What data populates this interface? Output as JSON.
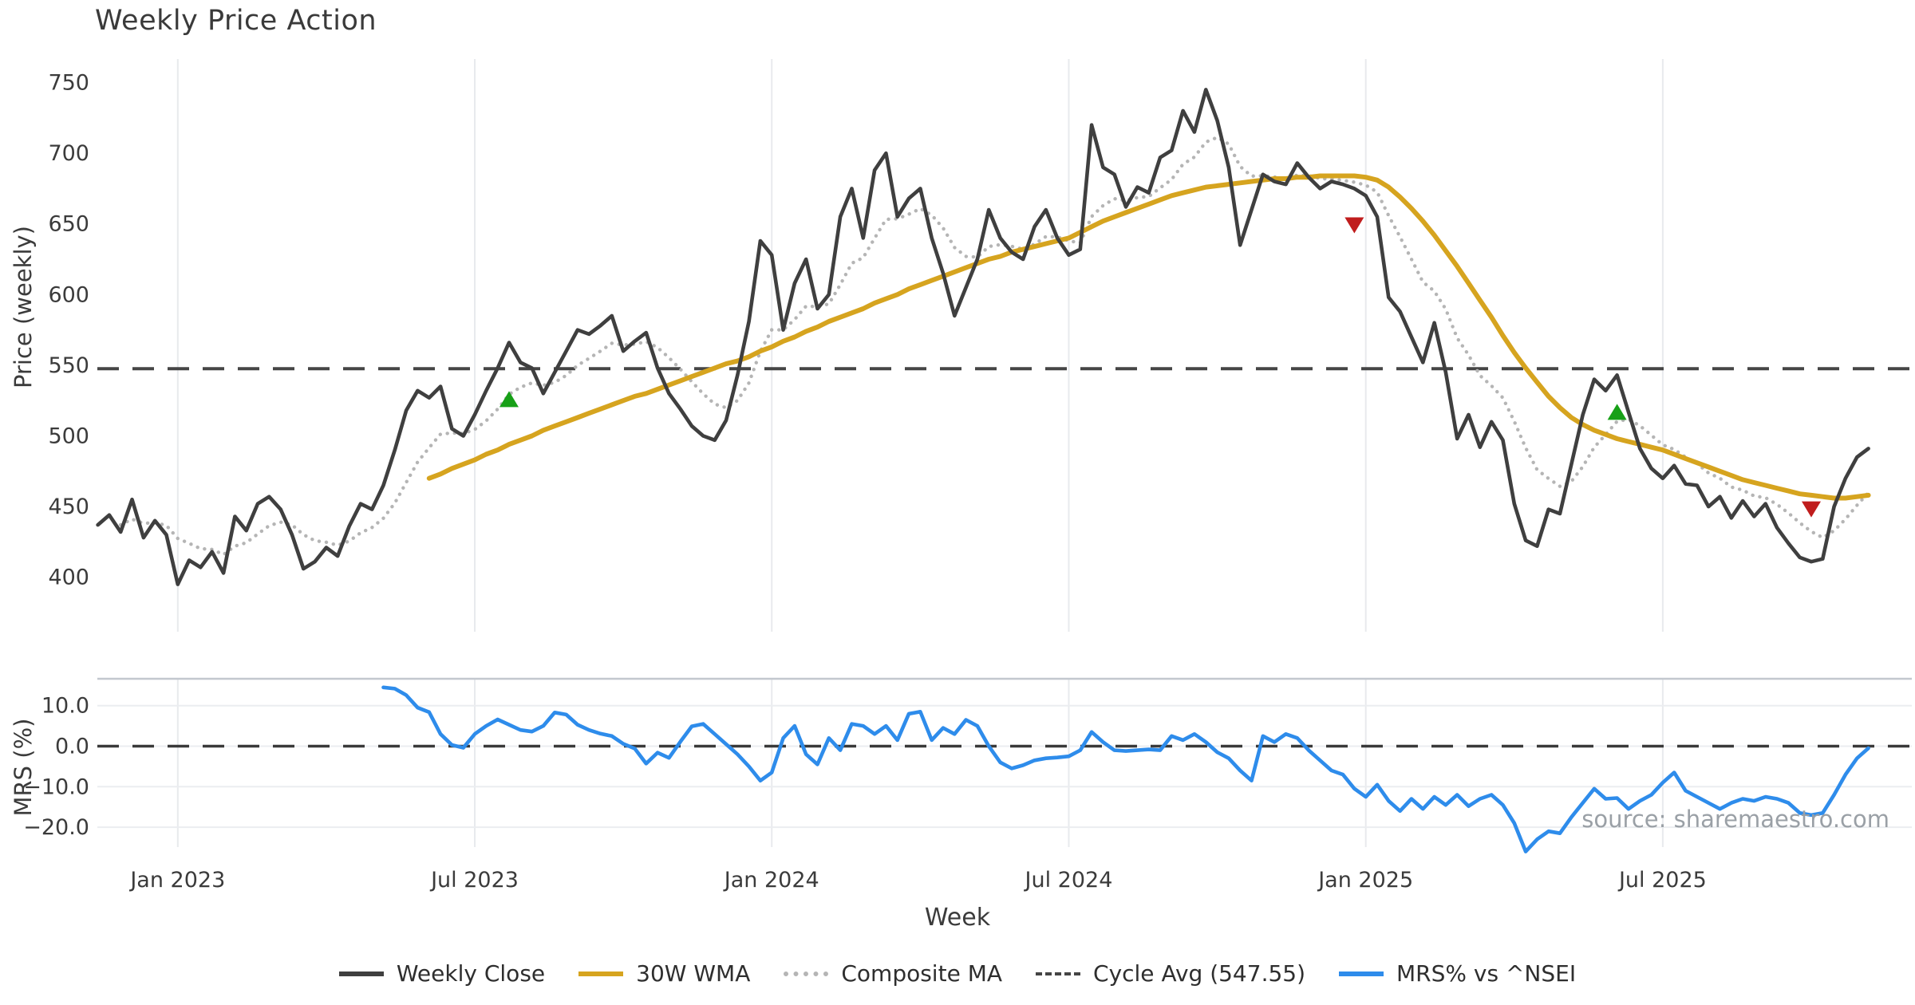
{
  "title": "Weekly Price Action",
  "source_note": "source: sharemaestro.com",
  "axes": {
    "price": {
      "label": "Price (weekly)",
      "ticks": [
        750,
        700,
        650,
        600,
        550,
        500,
        450,
        400
      ]
    },
    "mrs": {
      "label": "MRS (%)",
      "ticks": [
        "10.0",
        "0.0",
        "−10.0",
        "−20.0"
      ],
      "tick_values": [
        10,
        0,
        -10,
        -20
      ]
    },
    "x": {
      "label": "Week",
      "ticks": [
        {
          "week": 7,
          "label": "Jan 2023"
        },
        {
          "week": 33,
          "label": "Jul 2023"
        },
        {
          "week": 59,
          "label": "Jan 2024"
        },
        {
          "week": 85,
          "label": "Jul 2024"
        },
        {
          "week": 111,
          "label": "Jan 2025"
        },
        {
          "week": 137,
          "label": "Jul 2025"
        }
      ]
    }
  },
  "legend": {
    "items": [
      {
        "label": "Weekly Close",
        "color": "#3f3f3f",
        "style": "solid",
        "series": "weekly_close"
      },
      {
        "label": "30W WMA",
        "color": "#d6a41f",
        "style": "solid",
        "series": "wma_30w"
      },
      {
        "label": "Composite MA",
        "color": "#b5b5b5",
        "style": "dotted",
        "series": "composite_ma"
      },
      {
        "label": "Cycle Avg (547.55)",
        "color": "#454545",
        "style": "dashed",
        "series": "cycle_avg"
      },
      {
        "label": "MRS% vs ^NSEI",
        "color": "#2e8ceb",
        "style": "solid",
        "series": "mrs_pct"
      }
    ]
  },
  "chart_data": [
    {
      "type": "line",
      "panel": "main",
      "title": "Weekly Price Action",
      "ylabel": "Price (weekly)",
      "xlabel": "Week",
      "ylim": [
        365,
        765
      ],
      "grid": "vertical-only",
      "x_axis_note": "weekly index; 26 weeks between labeled ticks",
      "xticks": [
        {
          "week": 7,
          "label": "Jan 2023"
        },
        {
          "week": 33,
          "label": "Jul 2023"
        },
        {
          "week": 59,
          "label": "Jan 2024"
        },
        {
          "week": 85,
          "label": "Jul 2024"
        },
        {
          "week": 111,
          "label": "Jan 2025"
        },
        {
          "week": 137,
          "label": "Jul 2025"
        }
      ],
      "series": [
        {
          "name": "Weekly Close",
          "color": "#3f3f3f",
          "style": "solid",
          "start_week": 0,
          "values": [
            437,
            444,
            432,
            455,
            428,
            440,
            430,
            395,
            412,
            407,
            418,
            403,
            443,
            433,
            452,
            457,
            448,
            430,
            406,
            411,
            421,
            415,
            436,
            452,
            448,
            465,
            490,
            518,
            532,
            527,
            535,
            505,
            500,
            515,
            532,
            548,
            566,
            552,
            548,
            530,
            545,
            560,
            575,
            572,
            578,
            585,
            560,
            567,
            573,
            548,
            530,
            519,
            507,
            500,
            497,
            511,
            543,
            581,
            638,
            628,
            575,
            608,
            625,
            590,
            600,
            655,
            675,
            640,
            688,
            700,
            655,
            668,
            675,
            640,
            615,
            585,
            605,
            625,
            660,
            640,
            630,
            625,
            648,
            660,
            640,
            628,
            632,
            720,
            690,
            685,
            662,
            676,
            672,
            697,
            702,
            730,
            715,
            745,
            723,
            690,
            635,
            660,
            685,
            680,
            678,
            693,
            683,
            675,
            680,
            678,
            675,
            670,
            655,
            598,
            588,
            570,
            552,
            580,
            545,
            498,
            515,
            492,
            510,
            497,
            452,
            426,
            422,
            448,
            445,
            480,
            515,
            540,
            532,
            543,
            517,
            491,
            477,
            470,
            479,
            466,
            465,
            450,
            457,
            442,
            454,
            443,
            452,
            435,
            424,
            414,
            411,
            413,
            450,
            470,
            485,
            491
          ]
        },
        {
          "name": "30W WMA",
          "color": "#d6a41f",
          "style": "solid",
          "start_week": 29,
          "values": [
            470,
            473,
            477,
            480,
            483,
            487,
            490,
            494,
            497,
            500,
            504,
            507,
            510,
            513,
            516,
            519,
            522,
            525,
            528,
            530,
            533,
            536,
            539,
            542,
            545,
            548,
            551,
            553,
            556,
            560,
            563,
            567,
            570,
            574,
            577,
            581,
            584,
            587,
            590,
            594,
            597,
            600,
            604,
            607,
            610,
            613,
            616,
            619,
            622,
            625,
            627,
            630,
            632,
            634,
            636,
            638,
            640,
            644,
            648,
            652,
            655,
            658,
            661,
            664,
            667,
            670,
            672,
            674,
            676,
            677,
            678,
            679,
            680,
            681,
            682,
            682,
            683,
            683,
            684,
            684,
            684,
            684,
            683,
            681,
            676,
            669,
            661,
            652,
            642,
            631,
            620,
            608,
            596,
            584,
            571,
            559,
            548,
            538,
            528,
            520,
            513,
            508,
            504,
            501,
            498,
            496,
            494,
            492,
            490,
            487,
            484,
            481,
            478,
            475,
            472,
            469,
            467,
            465,
            463,
            461,
            459,
            458,
            457,
            456,
            456,
            457,
            458
          ]
        },
        {
          "name": "Composite MA",
          "color": "#b5b5b5",
          "style": "dotted",
          "derived": "ema_span8_of_weekly_close",
          "start_week": 2
        },
        {
          "name": "Cycle Avg",
          "color": "#454545",
          "style": "dashed",
          "value": 547.55
        }
      ],
      "markers": {
        "buy_color": "#17a017",
        "sell_color": "#c01d1d",
        "buy": [
          {
            "week": 36,
            "price": 526
          },
          {
            "week": 133,
            "price": 517
          }
        ],
        "sell": [
          {
            "week": 110,
            "price": 649
          },
          {
            "week": 150,
            "price": 448
          }
        ]
      }
    },
    {
      "type": "line",
      "panel": "lower",
      "ylabel": "MRS (%)",
      "ylim": [
        -28,
        17
      ],
      "zero_line_dashed": true,
      "yticks": [
        10,
        0,
        -10,
        -20
      ],
      "series": [
        {
          "name": "MRS% vs ^NSEI",
          "color": "#2e8ceb",
          "style": "solid",
          "start_week": 25,
          "values": [
            14.5,
            14.2,
            12.6,
            9.5,
            8.4,
            3.0,
            0.3,
            -0.4,
            3.0,
            5.0,
            6.6,
            5.3,
            4.0,
            3.6,
            5.0,
            8.3,
            7.8,
            5.3,
            4.0,
            3.1,
            2.5,
            0.6,
            -0.6,
            -4.3,
            -1.6,
            -2.9,
            1.1,
            4.9,
            5.5,
            3.0,
            0.5,
            -2.0,
            -5.0,
            -8.5,
            -6.5,
            2.0,
            5.0,
            -2.0,
            -4.5,
            2.0,
            -1.0,
            5.5,
            5.0,
            3.0,
            5.0,
            1.5,
            8.0,
            8.5,
            1.5,
            4.5,
            3.0,
            6.5,
            5.0,
            0.0,
            -4.0,
            -5.5,
            -4.7,
            -3.5,
            -3.0,
            -2.8,
            -2.5,
            -1.0,
            3.5,
            1.0,
            -1.0,
            -1.2,
            -1.0,
            -0.8,
            -1.0,
            2.5,
            1.5,
            3.0,
            1.0,
            -1.5,
            -3.0,
            -6.0,
            -8.5,
            2.5,
            1.0,
            3.0,
            2.0,
            -1.0,
            -3.5,
            -6.0,
            -7.0,
            -10.5,
            -12.5,
            -9.5,
            -13.5,
            -16.0,
            -13.0,
            -15.5,
            -12.5,
            -14.5,
            -12.0,
            -14.8,
            -13.0,
            -12.0,
            -14.5,
            -19.0,
            -26.0,
            -23.0,
            -21.0,
            -21.5,
            -17.5,
            -14.0,
            -10.5,
            -13.0,
            -12.8,
            -15.5,
            -13.5,
            -12.0,
            -9.0,
            -6.5,
            -11.0,
            -12.5,
            -14.0,
            -15.5,
            -14.0,
            -13.0,
            -13.5,
            -12.5,
            -13.0,
            -14.0,
            -16.5,
            -17.0,
            -16.5,
            -12.0,
            -7.0,
            -3.0,
            -0.5
          ]
        }
      ]
    }
  ]
}
